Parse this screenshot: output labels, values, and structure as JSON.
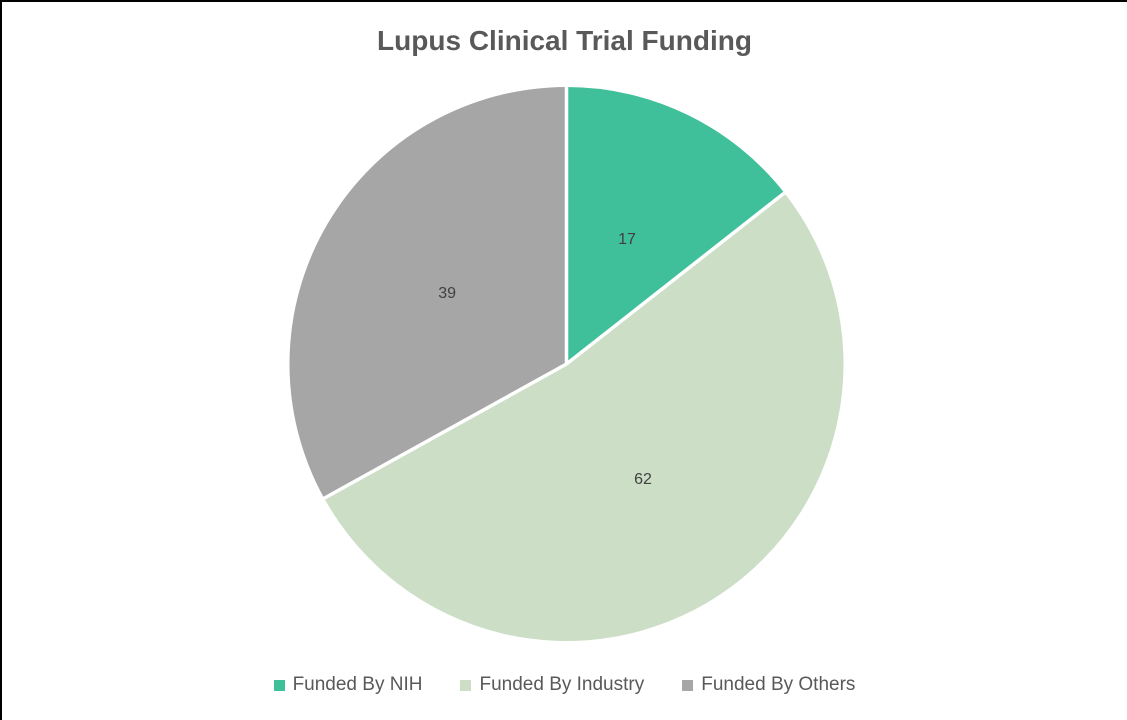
{
  "frame": {
    "border_color": "#000000",
    "background_color": "#ffffff"
  },
  "chart_data": {
    "type": "pie",
    "title": "Lupus Clinical Trial Funding",
    "categories": [
      "Funded By NIH",
      "Funded By Industry",
      "Funded By Others"
    ],
    "values": [
      17,
      62,
      39
    ],
    "colors": [
      "#40C09A",
      "#CCDEC6",
      "#A6A6A6"
    ],
    "data_labels": true,
    "data_label_color": "#404040",
    "title_color": "#595959",
    "legend_text_color": "#595959",
    "separator_color": "#FFFFFF",
    "start_angle_deg": 0,
    "direction": "clockwise",
    "legend_position": "bottom",
    "total": 118
  }
}
